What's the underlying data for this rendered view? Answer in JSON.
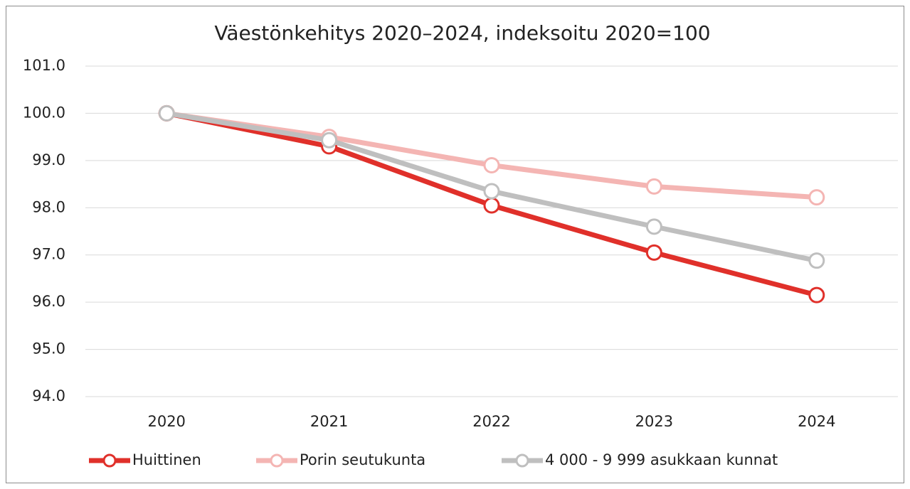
{
  "chart_data": {
    "type": "line",
    "title": "Väestönkehitys 2020–2024, indeksoitu 2020=100",
    "categories": [
      "2020",
      "2021",
      "2022",
      "2023",
      "2024"
    ],
    "series": [
      {
        "name": "Huittinen",
        "color": "#e0302a",
        "values": [
          100,
          99.3,
          98.05,
          97.05,
          96.15
        ]
      },
      {
        "name": "Porin seutukunta",
        "color": "#f4b5b3",
        "values": [
          100,
          99.5,
          98.9,
          98.45,
          98.22
        ]
      },
      {
        "name": "4 000 - 9 999 asukkaan kunnat",
        "color": "#bfbfbf",
        "values": [
          100,
          99.43,
          98.35,
          97.6,
          96.88
        ]
      }
    ],
    "ylim": [
      94,
      101
    ],
    "yticks": [
      {
        "value": 94,
        "label": "94.0"
      },
      {
        "value": 95,
        "label": "95.0"
      },
      {
        "value": 96,
        "label": "96.0"
      },
      {
        "value": 97,
        "label": "97.0"
      },
      {
        "value": 98,
        "label": "98.0"
      },
      {
        "value": 99,
        "label": "99.0"
      },
      {
        "value": 100,
        "label": "100.0"
      },
      {
        "value": 101,
        "label": "101.0"
      }
    ],
    "grid": true,
    "legend": "bottom"
  }
}
